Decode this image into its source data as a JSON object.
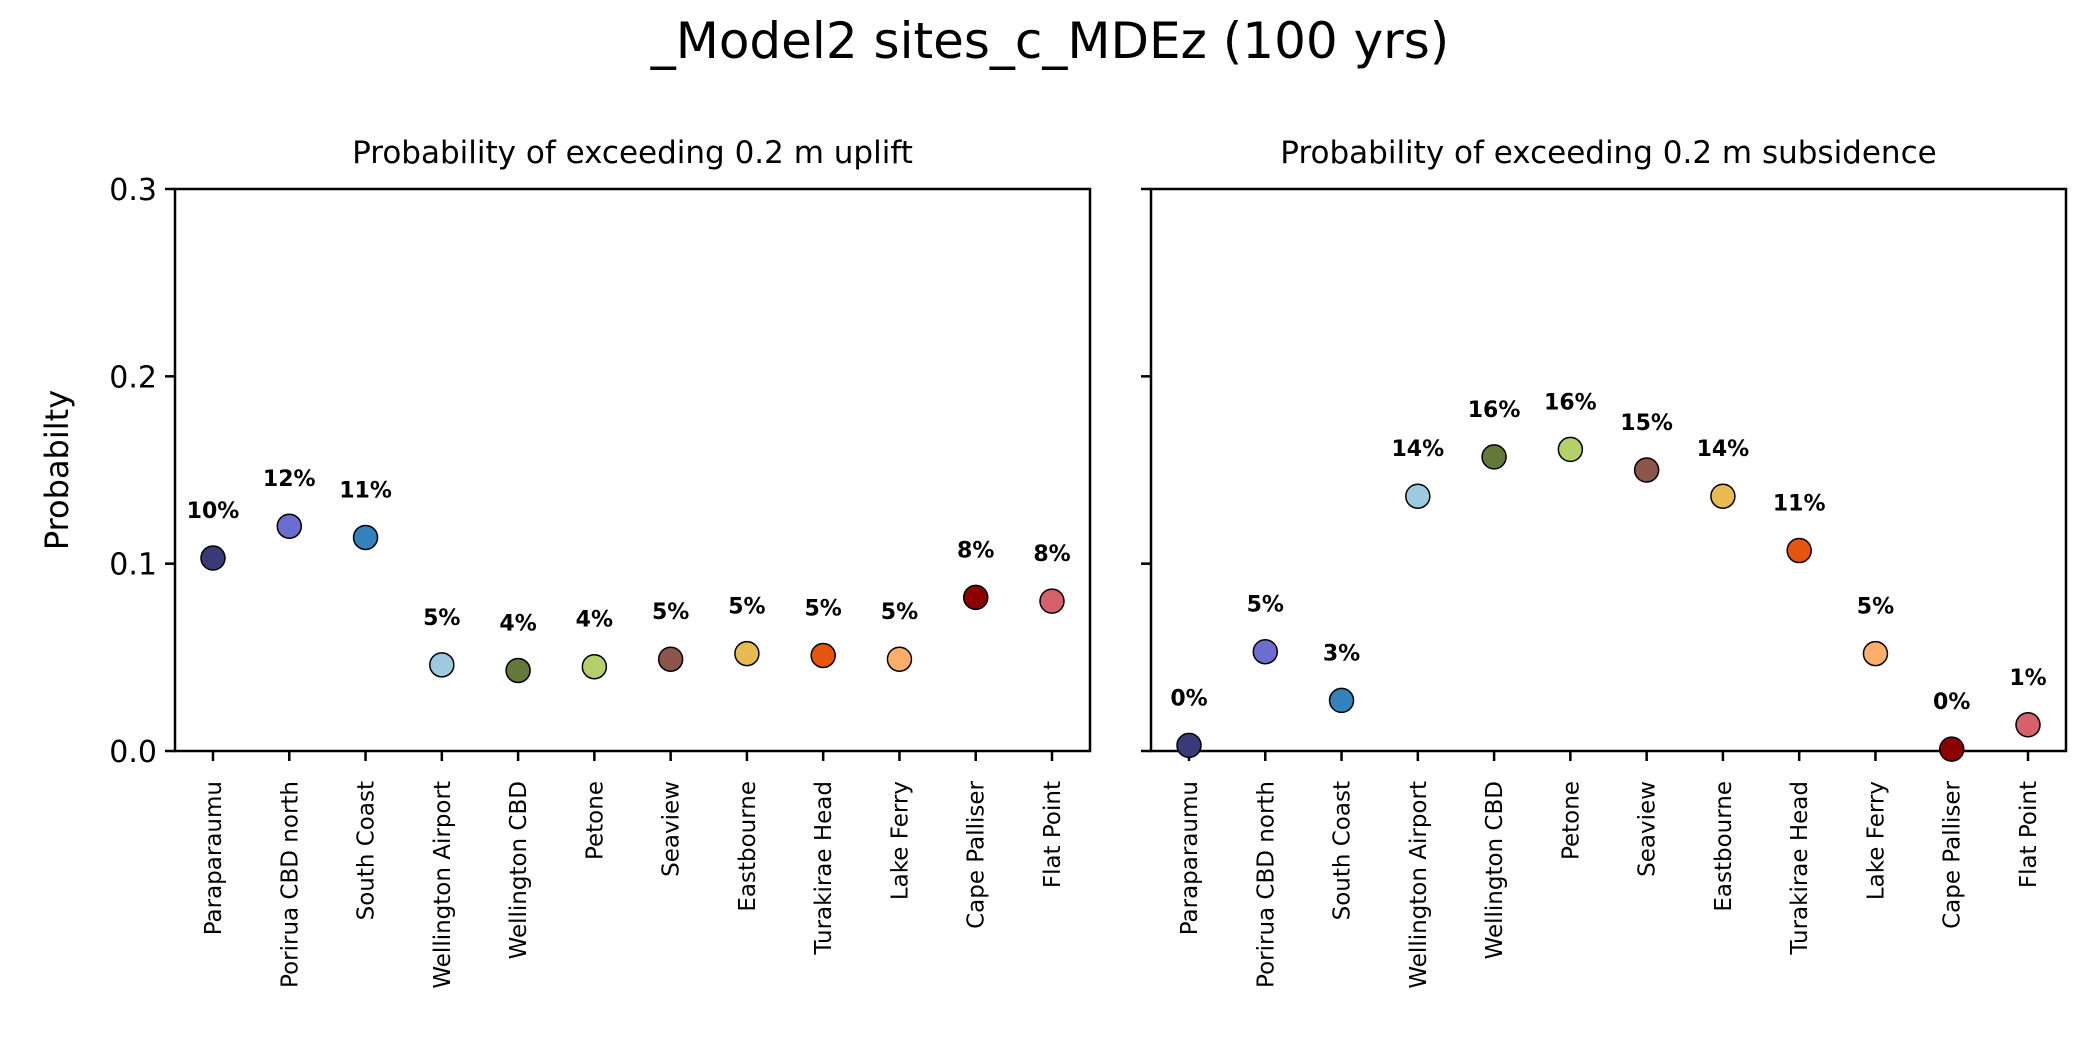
{
  "figure": {
    "title": "_Model2 sites_c_MDEz (100 yrs)"
  },
  "chart_data": [
    {
      "type": "scatter",
      "title": "Probability of exceeding 0.2 m uplift",
      "xlabel": "",
      "ylabel": "Probabilty",
      "ylim": [
        0,
        0.3
      ],
      "yticks": [
        "0.0",
        "0.1",
        "0.2",
        "0.3"
      ],
      "grid": false,
      "categories": [
        "Paraparaumu",
        "Porirua CBD north",
        "South Coast",
        "Wellington Airport",
        "Wellington CBD",
        "Petone",
        "Seaview",
        "Eastbourne",
        "Turakirae Head",
        "Lake Ferry",
        "Cape Palliser",
        "Flat Point"
      ],
      "values": [
        0.103,
        0.12,
        0.114,
        0.046,
        0.043,
        0.045,
        0.049,
        0.052,
        0.051,
        0.049,
        0.082,
        0.08
      ],
      "data_labels": [
        "10%",
        "12%",
        "11%",
        "5%",
        "4%",
        "4%",
        "5%",
        "5%",
        "5%",
        "5%",
        "8%",
        "8%"
      ],
      "colors": [
        "#393b79",
        "#6b6ecf",
        "#3182bd",
        "#9ecae1",
        "#637939",
        "#b5cf6b",
        "#8c564b",
        "#e7ba52",
        "#e6550d",
        "#fdae6b",
        "#8b0000",
        "#d6616b"
      ]
    },
    {
      "type": "scatter",
      "title": "Probability of exceeding 0.2 m subsidence",
      "xlabel": "",
      "ylabel": "",
      "ylim": [
        0,
        0.3
      ],
      "yticks": [
        "",
        "",
        "",
        ""
      ],
      "grid": false,
      "categories": [
        "Paraparaumu",
        "Porirua CBD north",
        "South Coast",
        "Wellington Airport",
        "Wellington CBD",
        "Petone",
        "Seaview",
        "Eastbourne",
        "Turakirae Head",
        "Lake Ferry",
        "Cape Palliser",
        "Flat Point"
      ],
      "values": [
        0.003,
        0.053,
        0.027,
        0.136,
        0.157,
        0.161,
        0.15,
        0.136,
        0.107,
        0.052,
        0.001,
        0.014
      ],
      "data_labels": [
        "0%",
        "5%",
        "3%",
        "14%",
        "16%",
        "16%",
        "15%",
        "14%",
        "11%",
        "5%",
        "0%",
        "1%"
      ],
      "colors": [
        "#393b79",
        "#6b6ecf",
        "#3182bd",
        "#9ecae1",
        "#637939",
        "#b5cf6b",
        "#8c564b",
        "#e7ba52",
        "#e6550d",
        "#fdae6b",
        "#8b0000",
        "#d6616b"
      ]
    }
  ]
}
